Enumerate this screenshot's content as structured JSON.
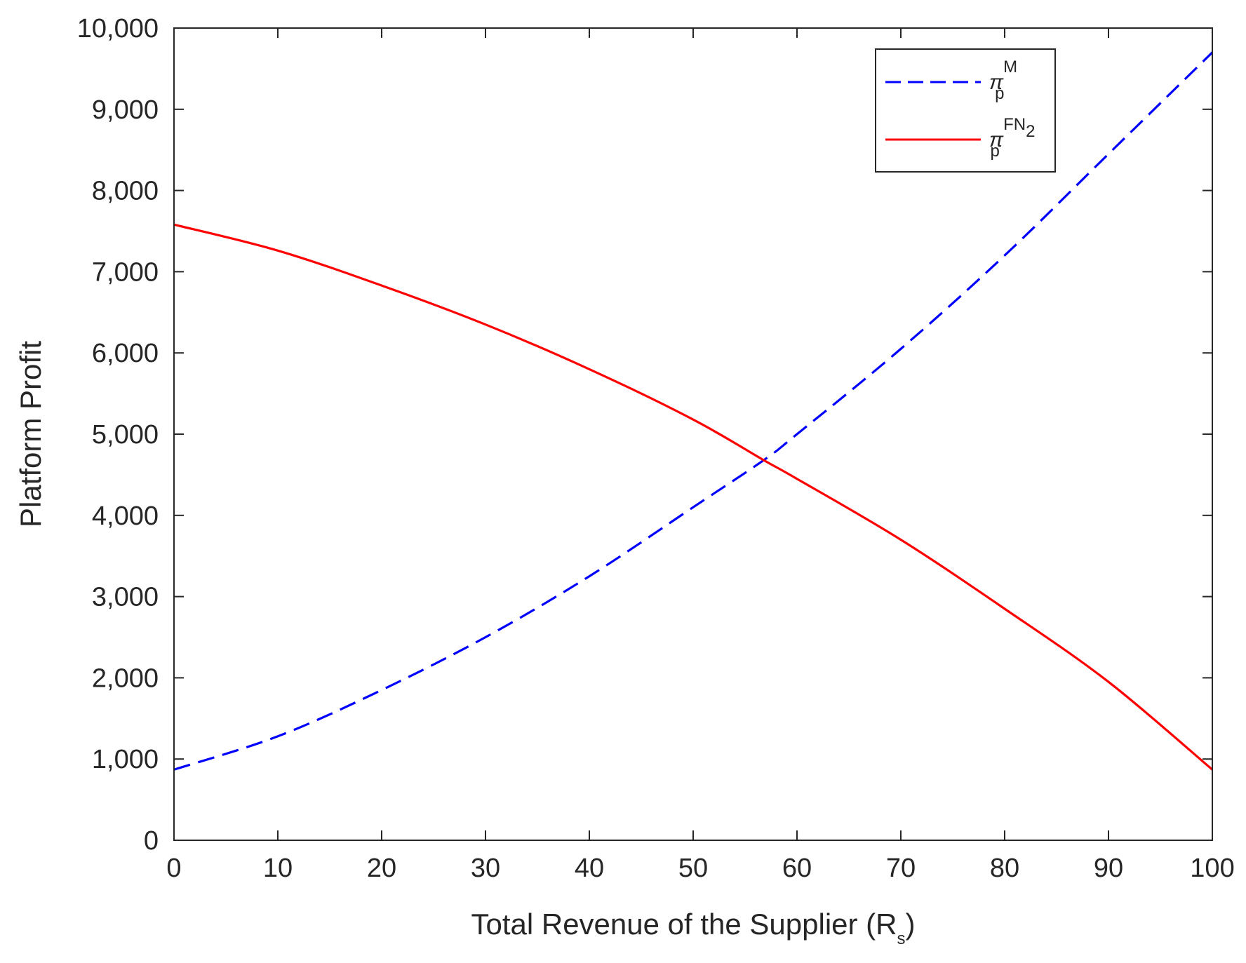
{
  "chart_data": {
    "type": "line",
    "xlabel": "Total Revenue of the Supplier (R",
    "xlabel_sub": "s",
    "xlabel_close": ")",
    "ylabel": "Platform Profit",
    "xlim": [
      0,
      100
    ],
    "ylim": [
      0,
      10000
    ],
    "grid": false,
    "legend_position": "top-right",
    "xticks": [
      0,
      10,
      20,
      30,
      40,
      50,
      60,
      70,
      80,
      90,
      100
    ],
    "xtick_labels": [
      "0",
      "10",
      "20",
      "30",
      "40",
      "50",
      "60",
      "70",
      "80",
      "90",
      "100"
    ],
    "yticks": [
      0,
      1000,
      2000,
      3000,
      4000,
      5000,
      6000,
      7000,
      8000,
      9000,
      10000
    ],
    "ytick_labels": [
      "0",
      "1,000",
      "2,000",
      "3,000",
      "4,000",
      "5,000",
      "6,000",
      "7,000",
      "8,000",
      "9,000",
      "10,000"
    ],
    "x": [
      0,
      10,
      20,
      30,
      40,
      50,
      56.8,
      60,
      70,
      80,
      90,
      100
    ],
    "series": [
      {
        "name": "π_p^M",
        "legend_main": "π",
        "legend_sub": "p",
        "legend_sup": "M",
        "style": "dashed",
        "color": "#0000ff",
        "values": [
          870,
          1280,
          1850,
          2500,
          3250,
          4100,
          4680,
          5000,
          6050,
          7200,
          8450,
          9700
        ]
      },
      {
        "name": "π_p^FN2",
        "legend_main": "π",
        "legend_sub": "p",
        "legend_sup": "FN",
        "legend_sup_sub": "2",
        "style": "solid",
        "color": "#ff0000",
        "values": [
          7580,
          7260,
          6830,
          6350,
          5800,
          5180,
          4680,
          4450,
          3700,
          2850,
          1950,
          870
        ]
      }
    ]
  }
}
